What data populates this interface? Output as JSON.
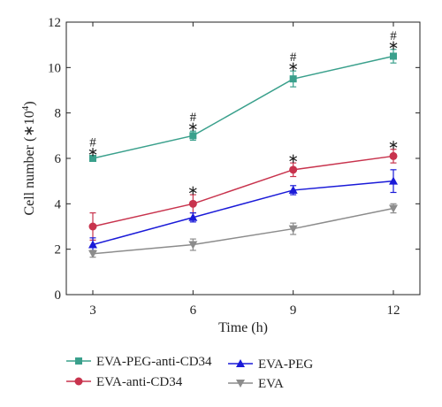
{
  "chart_data": {
    "type": "line",
    "xlabel": "Time (h)",
    "ylabel_main": "Cell number (∗10",
    "ylabel_sup": "4",
    "ylabel_close": ")",
    "x": [
      3,
      6,
      9,
      12
    ],
    "xlim": [
      3,
      12
    ],
    "ylim": [
      0,
      12
    ],
    "xticks": [
      "3",
      "6",
      "9",
      "12"
    ],
    "yticks": [
      "0",
      "2",
      "4",
      "6",
      "8",
      "10",
      "12"
    ],
    "legend_position": "bottom",
    "series": [
      {
        "name": "EVA-PEG-anti-CD34",
        "color": "#3aa08c",
        "marker": "square",
        "values": [
          6.0,
          7.0,
          9.5,
          10.5
        ],
        "errors": [
          0.1,
          0.2,
          0.35,
          0.3
        ],
        "annotations": [
          "#\n∗",
          "#\n∗",
          "#\n∗",
          "#\n∗"
        ]
      },
      {
        "name": "EVA-anti-CD34",
        "color": "#c8334d",
        "marker": "circle",
        "values": [
          3.0,
          4.0,
          5.5,
          6.1
        ],
        "errors": [
          0.6,
          0.4,
          0.3,
          0.3
        ],
        "annotations": [
          "",
          "∗",
          "∗",
          "∗"
        ]
      },
      {
        "name": "EVA-PEG",
        "color": "#1a1ad8",
        "marker": "triangle-up",
        "values": [
          2.2,
          3.4,
          4.6,
          5.0
        ],
        "errors": [
          0.3,
          0.2,
          0.2,
          0.5
        ],
        "annotations": [
          "",
          "",
          "",
          ""
        ]
      },
      {
        "name": "EVA",
        "color": "#8c8c8c",
        "marker": "triangle-down",
        "values": [
          1.8,
          2.2,
          2.9,
          3.8
        ],
        "errors": [
          0.15,
          0.25,
          0.25,
          0.2
        ],
        "annotations": [
          "",
          "",
          "",
          ""
        ]
      }
    ],
    "legend_order": [
      0,
      2,
      1,
      3
    ]
  }
}
